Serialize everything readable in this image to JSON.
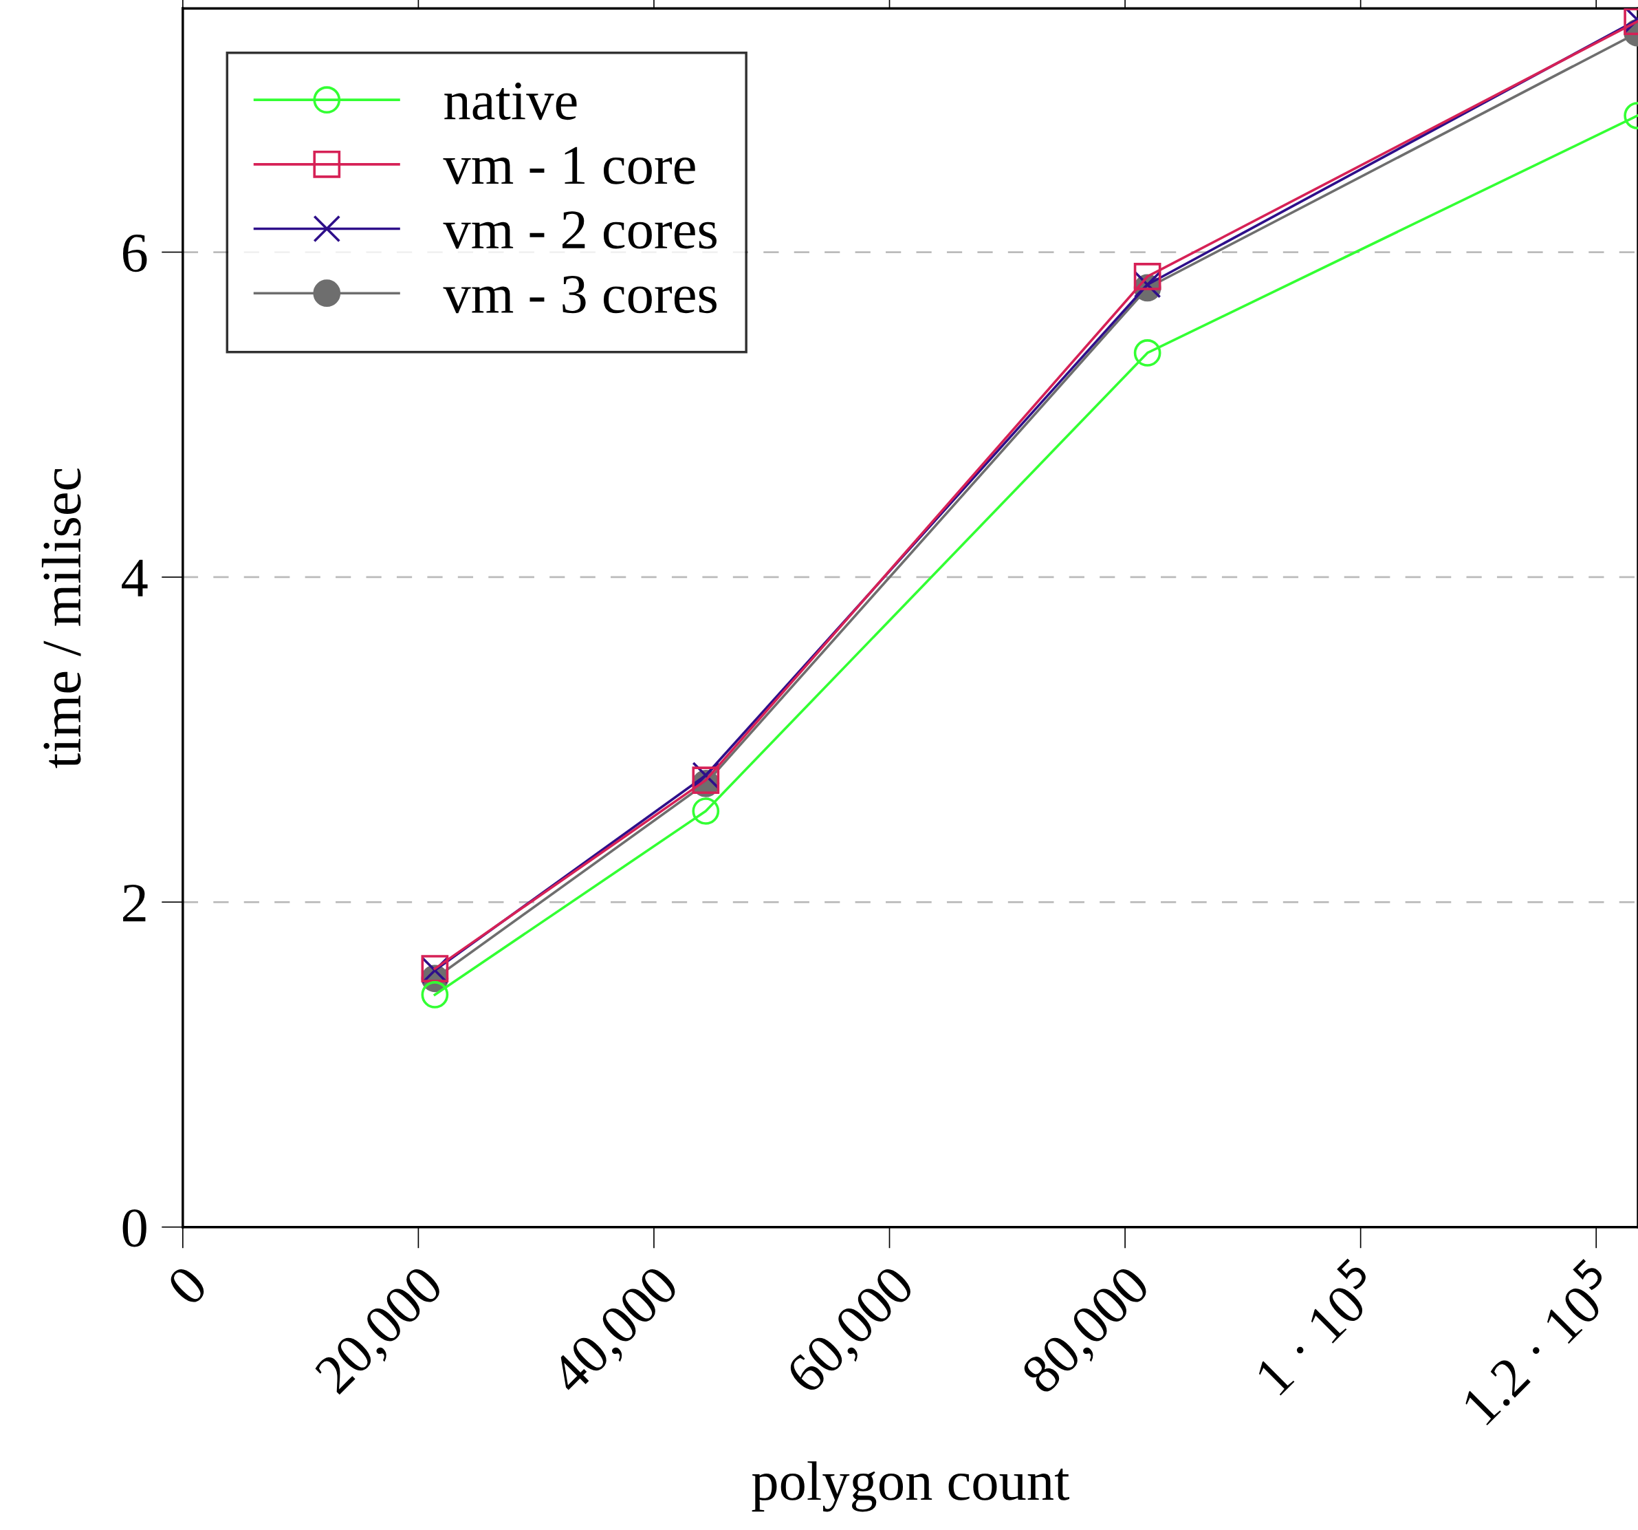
{
  "chart_data": {
    "type": "line",
    "xlabel": "polygon count",
    "ylabel": "time / milisec",
    "x": [
      21400,
      44400,
      81900,
      123500
    ],
    "series": [
      {
        "name": "native",
        "color": "#33ff33",
        "marker": "circle",
        "values": [
          1.43,
          2.56,
          5.38,
          6.84
        ]
      },
      {
        "name": "vm - 1 core",
        "color": "#d62156",
        "marker": "square",
        "values": [
          1.59,
          2.75,
          5.85,
          7.42
        ]
      },
      {
        "name": "vm - 2 cores",
        "color": "#2e0f8a",
        "marker": "cross",
        "values": [
          1.58,
          2.78,
          5.8,
          7.43
        ]
      },
      {
        "name": "vm - 3 cores",
        "color": "#6e6e6e",
        "marker": "circle_filled",
        "values": [
          1.53,
          2.73,
          5.78,
          7.35
        ]
      }
    ],
    "xlim": [
      0,
      123550
    ],
    "ylim": [
      0,
      7.5
    ],
    "xticks": [
      0,
      {
        "value": 20000,
        "label": "20,000"
      },
      {
        "value": 40000,
        "label": "40,000"
      },
      {
        "value": 60000,
        "label": "60,000"
      },
      {
        "value": 80000,
        "label": "80,000"
      },
      {
        "value": 100000,
        "label": "1 · 10$^{5}$"
      },
      {
        "value": 120000,
        "label": "1.2 · 10$^{5}$"
      }
    ],
    "yticks": [
      0,
      2,
      4,
      6
    ],
    "grid": "y",
    "legend": "top left",
    "line_style": "solid"
  }
}
